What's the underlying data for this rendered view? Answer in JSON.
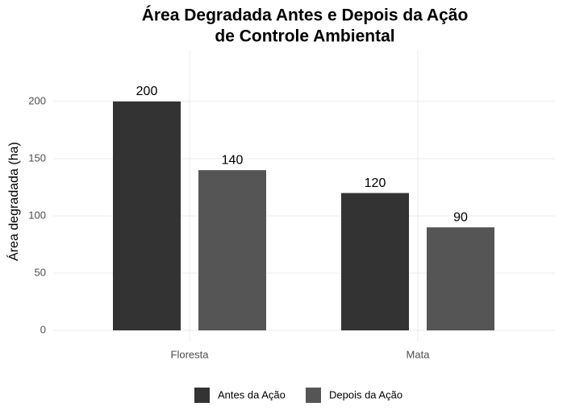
{
  "chart_data": {
    "type": "bar",
    "title": [
      "Área Degradada Antes e Depois da Ação",
      "de Controle Ambiental"
    ],
    "y_label": "Área degradada (ha)",
    "categories": [
      "Floresta",
      "Mata"
    ],
    "series": [
      {
        "name": "Antes da Ação",
        "color": "#333333",
        "values": [
          200,
          120
        ]
      },
      {
        "name": "Depois da Ação",
        "color": "#555555",
        "values": [
          140,
          90
        ]
      }
    ],
    "ylim": [
      0,
      245
    ],
    "yticks": [
      0,
      50,
      100,
      150,
      200
    ],
    "grid": true,
    "legend": "bottom"
  }
}
